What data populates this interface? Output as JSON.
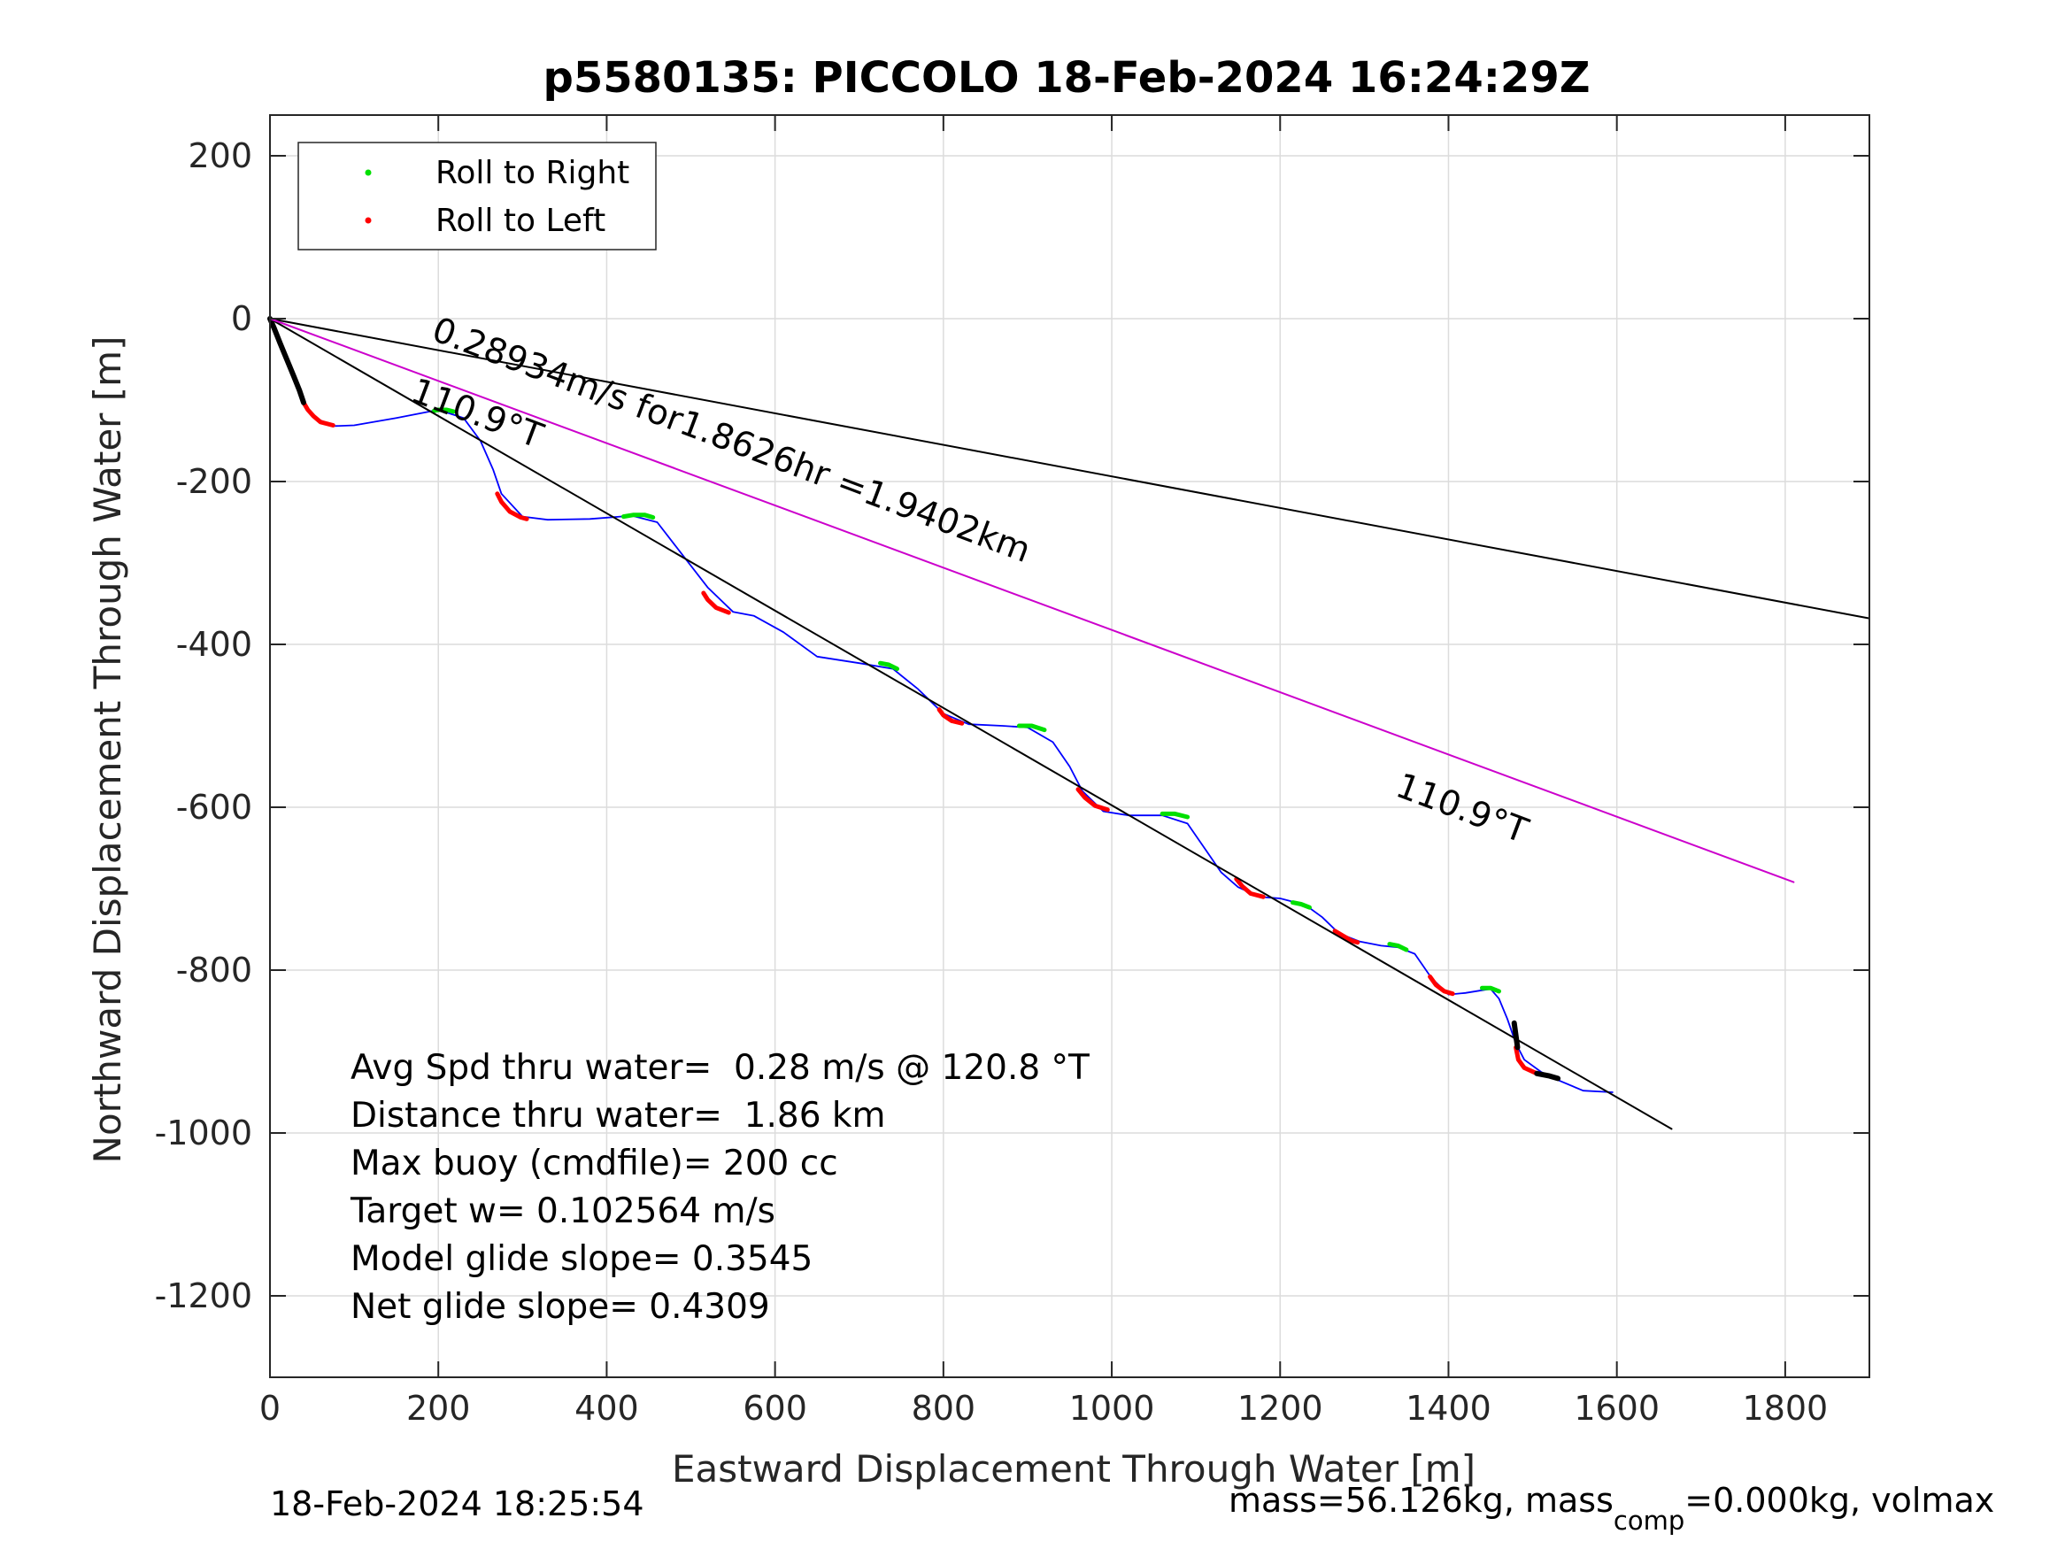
{
  "chart_data": {
    "type": "line",
    "title": "p5580135: PICCOLO 18-Feb-2024 16:24:29Z",
    "xlabel": "Eastward Displacement Through Water [m]",
    "ylabel": "Northward Displacement Through Water [m]",
    "xlim": [
      0,
      1900
    ],
    "ylim": [
      -1300,
      250
    ],
    "xticks": [
      0,
      200,
      400,
      600,
      800,
      1000,
      1200,
      1400,
      1600,
      1800
    ],
    "yticks": [
      -1200,
      -1000,
      -800,
      -600,
      -400,
      -200,
      0,
      200
    ],
    "xtick_labels": [
      "0",
      "200",
      "400",
      "600",
      "800",
      "1000",
      "1200",
      "1400",
      "1600",
      "1800"
    ],
    "ytick_labels": [
      "-1200",
      "-1000",
      "-800",
      "-600",
      "-400",
      "-200",
      "0",
      "200"
    ],
    "grid": true,
    "legend_position": "top-left",
    "legend": [
      {
        "label": "Roll to Right",
        "color": "#00e000"
      },
      {
        "label": "Roll to Left",
        "color": "#ff0000"
      }
    ],
    "series": [
      {
        "color": "#0000ff",
        "x": [
          0,
          10,
          20,
          30,
          40,
          50,
          75,
          100,
          150,
          200,
          230,
          250,
          265,
          275,
          300,
          330,
          380,
          430,
          460,
          490,
          520,
          550,
          575,
          610,
          650,
          700,
          740,
          770,
          800,
          830,
          870,
          900,
          930,
          950,
          965,
          990,
          1020,
          1060,
          1090,
          1110,
          1130,
          1150,
          1175,
          1200,
          1230,
          1250,
          1270,
          1295,
          1320,
          1340,
          1360,
          1380,
          1400,
          1420,
          1450,
          1460,
          1470,
          1480,
          1490,
          1510,
          1530,
          1560,
          1595
        ],
        "y": [
          0,
          -25,
          -50,
          -80,
          -105,
          -120,
          -132,
          -131,
          -122,
          -112,
          -122,
          -150,
          -185,
          -215,
          -243,
          -247,
          -246,
          -242,
          -250,
          -290,
          -330,
          -360,
          -365,
          -385,
          -415,
          -423,
          -430,
          -455,
          -485,
          -498,
          -500,
          -502,
          -520,
          -550,
          -580,
          -605,
          -610,
          -610,
          -620,
          -650,
          -680,
          -698,
          -710,
          -712,
          -720,
          -735,
          -755,
          -765,
          -770,
          -772,
          -780,
          -810,
          -830,
          -828,
          -823,
          -835,
          -860,
          -890,
          -910,
          -925,
          -935,
          -948,
          -950
        ]
      },
      {
        "name": "Roll to Right",
        "color": "#00e000",
        "segments": [
          {
            "x": [
              195,
              200,
              210,
              218
            ],
            "y": [
              -113,
              -112,
              -112,
              -114
            ]
          },
          {
            "x": [
              420,
              432,
              445,
              455
            ],
            "y": [
              -243,
              -241,
              -241,
              -244
            ]
          },
          {
            "x": [
              725,
              735,
              745
            ],
            "y": [
              -423,
              -425,
              -430
            ]
          },
          {
            "x": [
              890,
              905,
              920
            ],
            "y": [
              -500,
              -500,
              -505
            ]
          },
          {
            "x": [
              1060,
              1075,
              1090
            ],
            "y": [
              -608,
              -608,
              -612
            ]
          },
          {
            "x": [
              1215,
              1225,
              1235
            ],
            "y": [
              -717,
              -719,
              -723
            ]
          },
          {
            "x": [
              1330,
              1340,
              1350
            ],
            "y": [
              -768,
              -770,
              -775
            ]
          },
          {
            "x": [
              1440,
              1450,
              1460
            ],
            "y": [
              -822,
              -822,
              -826
            ]
          }
        ]
      },
      {
        "name": "Roll to Left",
        "color": "#ff0000",
        "segments": [
          {
            "x": [
              40,
              45,
              52,
              60,
              75
            ],
            "y": [
              -103,
              -112,
              -120,
              -127,
              -131
            ]
          },
          {
            "x": [
              270,
              275,
              285,
              298,
              305
            ],
            "y": [
              -215,
              -225,
              -237,
              -244,
              -246
            ]
          },
          {
            "x": [
              515,
              520,
              530,
              545
            ],
            "y": [
              -337,
              -345,
              -355,
              -361
            ]
          },
          {
            "x": [
              795,
              800,
              810,
              822
            ],
            "y": [
              -480,
              -487,
              -494,
              -497
            ]
          },
          {
            "x": [
              960,
              968,
              980,
              995
            ],
            "y": [
              -578,
              -588,
              -598,
              -603
            ]
          },
          {
            "x": [
              1148,
              1155,
              1165,
              1180
            ],
            "y": [
              -688,
              -697,
              -706,
              -710
            ]
          },
          {
            "x": [
              1265,
              1275,
              1285,
              1292
            ],
            "y": [
              -752,
              -758,
              -764,
              -766
            ]
          },
          {
            "x": [
              1378,
              1385,
              1395,
              1405
            ],
            "y": [
              -808,
              -818,
              -826,
              -829
            ]
          },
          {
            "x": [
              1480,
              1483,
              1490,
              1505,
              1520
            ],
            "y": [
              -895,
              -910,
              -920,
              -927,
              -930
            ]
          }
        ]
      },
      {
        "color": "#000000",
        "segments": [
          {
            "x": [
              0,
              5,
              12,
              20,
              28,
              35,
              40
            ],
            "y": [
              0,
              -12,
              -30,
              -50,
              -70,
              -88,
              -103
            ]
          },
          {
            "x": [
              1478,
              1480,
              1482
            ],
            "y": [
              -865,
              -880,
              -895
            ]
          },
          {
            "x": [
              1505,
              1520,
              1530
            ],
            "y": [
              -927,
              -930,
              -933
            ]
          }
        ]
      },
      {
        "color": "#000000",
        "x": [
          0,
          1665
        ],
        "y": [
          0,
          -995
        ]
      },
      {
        "color": "#000000",
        "x": [
          0,
          1900
        ],
        "y": [
          0,
          -368
        ]
      },
      {
        "color": "#cc00cc",
        "x": [
          0,
          1810
        ],
        "y": [
          0,
          -692
        ]
      }
    ],
    "annotations": [
      {
        "text": "0.28934m/s for1.8626hr =1.9402km",
        "x": 190,
        "y": -25,
        "angle_deg": 20.6
      },
      {
        "text": "110.9°T",
        "x": 165,
        "y": -100,
        "angle_deg": 20.6
      },
      {
        "text": "110.9°T",
        "x": 1335,
        "y": -585,
        "angle_deg": 20.6
      }
    ],
    "info_lines": [
      "Avg Spd thru water=  0.28 m/s @ 120.8 °T",
      "Distance thru water=  1.86 km",
      "Max buoy (cmdfile)= 200 cc",
      "Target w= 0.102564 m/s",
      "Model glide slope= 0.3545",
      "Net glide slope= 0.4309"
    ]
  },
  "footer": {
    "timestamp": "18-Feb-2024 18:25:54",
    "mass_prefix": "mass=56.126kg, mass",
    "mass_subscript": "comp",
    "mass_suffix": "=0.000kg, volmax"
  }
}
